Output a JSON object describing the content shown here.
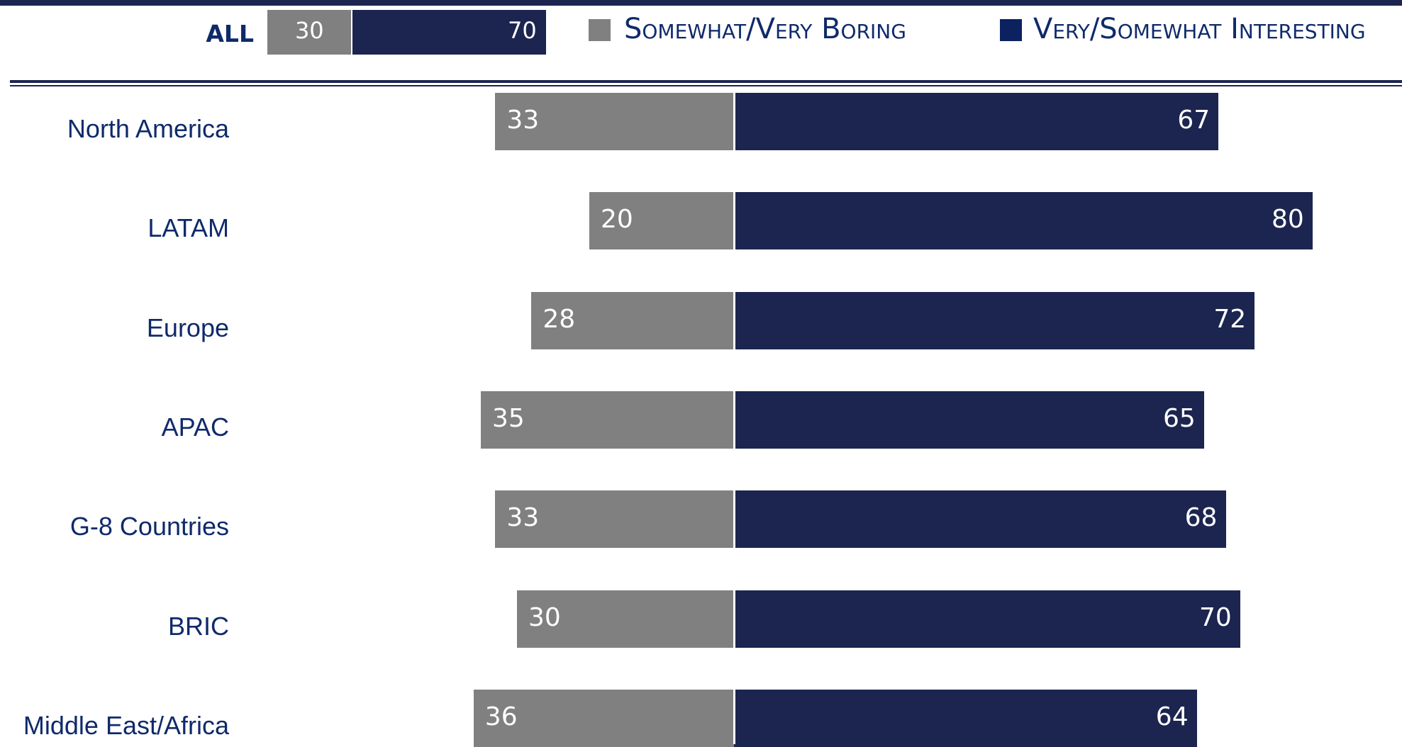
{
  "chart_data": {
    "type": "bar",
    "orientation": "horizontal",
    "stacked": "diverging",
    "summary": {
      "label": "ALL",
      "boring": 30,
      "interesting": 70
    },
    "categories": [
      "North America",
      "LATAM",
      "Europe",
      "APAC",
      "G-8 Countries",
      "BRIC",
      "Middle East/Africa"
    ],
    "series": [
      {
        "name": "Somewhat/Very Boring",
        "color": "#808080",
        "values": [
          33,
          20,
          28,
          35,
          33,
          30,
          36
        ]
      },
      {
        "name": "Very/Somewhat Interesting",
        "color": "#1b2550",
        "values": [
          67,
          80,
          72,
          65,
          68,
          70,
          64
        ]
      }
    ],
    "legend_position": "top",
    "grid": false
  }
}
